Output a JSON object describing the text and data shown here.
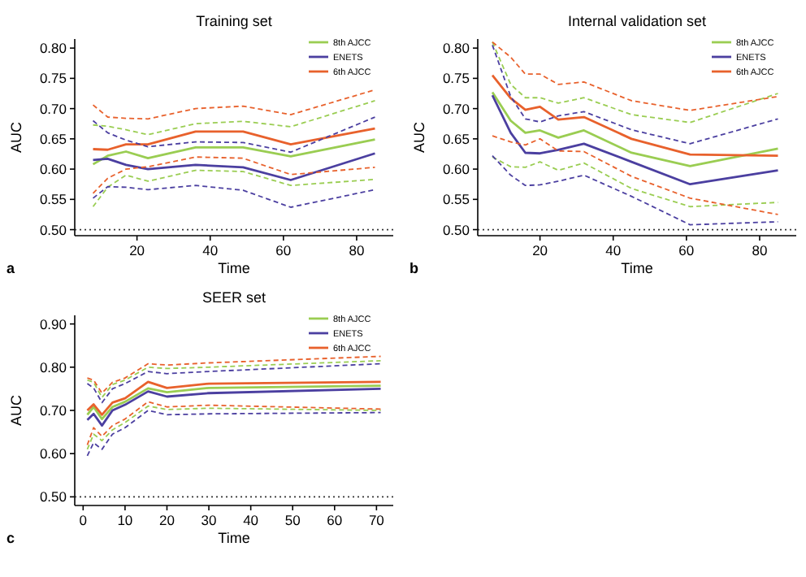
{
  "chart_data": [
    {
      "type": "line",
      "title": "Training set",
      "xlabel": "Time",
      "ylabel": "AUC",
      "annotations": [
        "a"
      ],
      "legend": "top right",
      "line_style": "solid",
      "marker": "none",
      "xlim": [
        3,
        90
      ],
      "xticks": [
        20,
        40,
        60,
        80
      ],
      "ylim": [
        0.49,
        0.815
      ],
      "yticks": [
        {
          "value": 0.5,
          "label": "0.50"
        },
        {
          "value": 0.55,
          "label": "0.55"
        },
        {
          "value": 0.6,
          "label": "0.60"
        },
        {
          "value": 0.65,
          "label": "0.65"
        },
        {
          "value": 0.7,
          "label": "0.70"
        },
        {
          "value": 0.75,
          "label": "0.75"
        },
        {
          "value": 0.8,
          "label": "0.80"
        }
      ],
      "ref_lines": [
        {
          "axis": "y",
          "value": 0.5,
          "color": "#333333",
          "line_style": "dotted"
        }
      ],
      "x": [
        8,
        12,
        17,
        23,
        36,
        49,
        62,
        85
      ],
      "series": [
        {
          "name": "8th AJCC",
          "color": "#9acd52",
          "values": [
            0.608,
            0.622,
            0.629,
            0.618,
            0.636,
            0.636,
            0.621,
            0.649
          ]
        },
        {
          "name": "ENETS",
          "color": "#4b3fa0",
          "values": [
            0.615,
            0.617,
            0.607,
            0.6,
            0.607,
            0.603,
            0.582,
            0.626
          ]
        },
        {
          "name": "6th AJCC",
          "color": "#e8612c",
          "values": [
            0.633,
            0.632,
            0.641,
            0.641,
            0.662,
            0.662,
            0.641,
            0.667
          ]
        },
        {
          "color": "#9acd52",
          "line_style": "dashed",
          "values": [
            0.538,
            0.57,
            0.59,
            0.58,
            0.598,
            0.596,
            0.573,
            0.583
          ]
        },
        {
          "color": "#9acd52",
          "line_style": "dashed",
          "values": [
            0.673,
            0.671,
            0.665,
            0.657,
            0.675,
            0.679,
            0.67,
            0.713
          ]
        },
        {
          "color": "#4b3fa0",
          "line_style": "dashed",
          "values": [
            0.552,
            0.571,
            0.57,
            0.566,
            0.573,
            0.565,
            0.537,
            0.566
          ]
        },
        {
          "color": "#4b3fa0",
          "line_style": "dashed",
          "values": [
            0.68,
            0.66,
            0.648,
            0.637,
            0.645,
            0.644,
            0.628,
            0.686
          ]
        },
        {
          "color": "#e8612c",
          "line_style": "dashed",
          "values": [
            0.56,
            0.585,
            0.6,
            0.604,
            0.62,
            0.618,
            0.591,
            0.603
          ]
        },
        {
          "color": "#e8612c",
          "line_style": "dashed",
          "values": [
            0.706,
            0.686,
            0.684,
            0.683,
            0.7,
            0.704,
            0.69,
            0.731
          ]
        }
      ]
    },
    {
      "type": "line",
      "title": "Internal validation set",
      "xlabel": "Time",
      "ylabel": "AUC",
      "annotations": [
        "b"
      ],
      "legend": "top right",
      "line_style": "solid",
      "marker": "none",
      "xlim": [
        3,
        90
      ],
      "xticks": [
        20,
        40,
        60,
        80
      ],
      "ylim": [
        0.49,
        0.815
      ],
      "yticks": [
        {
          "value": 0.5,
          "label": "0.50"
        },
        {
          "value": 0.55,
          "label": "0.55"
        },
        {
          "value": 0.6,
          "label": "0.60"
        },
        {
          "value": 0.65,
          "label": "0.65"
        },
        {
          "value": 0.7,
          "label": "0.70"
        },
        {
          "value": 0.75,
          "label": "0.75"
        },
        {
          "value": 0.8,
          "label": "0.80"
        }
      ],
      "ref_lines": [
        {
          "axis": "y",
          "value": 0.5,
          "color": "#333333",
          "line_style": "dotted"
        }
      ],
      "x": [
        7,
        12,
        16,
        20,
        25,
        32,
        45,
        61,
        85
      ],
      "series": [
        {
          "name": "8th AJCC",
          "color": "#9acd52",
          "values": [
            0.727,
            0.68,
            0.66,
            0.664,
            0.652,
            0.664,
            0.627,
            0.605,
            0.634
          ]
        },
        {
          "name": "ENETS",
          "color": "#4b3fa0",
          "values": [
            0.722,
            0.66,
            0.627,
            0.626,
            0.632,
            0.642,
            0.612,
            0.575,
            0.598
          ]
        },
        {
          "name": "6th AJCC",
          "color": "#e8612c",
          "values": [
            0.755,
            0.717,
            0.698,
            0.703,
            0.682,
            0.686,
            0.65,
            0.624,
            0.622
          ]
        },
        {
          "color": "#9acd52",
          "line_style": "dashed",
          "values": [
            0.62,
            0.604,
            0.603,
            0.612,
            0.598,
            0.61,
            0.568,
            0.538,
            0.545
          ]
        },
        {
          "color": "#9acd52",
          "line_style": "dashed",
          "values": [
            0.81,
            0.74,
            0.718,
            0.718,
            0.709,
            0.718,
            0.69,
            0.677,
            0.725
          ]
        },
        {
          "color": "#4b3fa0",
          "line_style": "dashed",
          "values": [
            0.622,
            0.59,
            0.573,
            0.574,
            0.58,
            0.59,
            0.555,
            0.508,
            0.513
          ]
        },
        {
          "color": "#4b3fa0",
          "line_style": "dashed",
          "values": [
            0.805,
            0.72,
            0.683,
            0.678,
            0.688,
            0.695,
            0.665,
            0.642,
            0.683
          ]
        },
        {
          "color": "#e8612c",
          "line_style": "dashed",
          "values": [
            0.655,
            0.645,
            0.64,
            0.65,
            0.63,
            0.629,
            0.588,
            0.552,
            0.525
          ]
        },
        {
          "color": "#e8612c",
          "line_style": "dashed",
          "values": [
            0.81,
            0.785,
            0.757,
            0.757,
            0.74,
            0.744,
            0.713,
            0.697,
            0.72
          ]
        }
      ]
    },
    {
      "type": "line",
      "title": "SEER set",
      "xlabel": "Time",
      "ylabel": "AUC",
      "annotations": [
        "c"
      ],
      "legend": "top right",
      "line_style": "solid",
      "marker": "none",
      "xlim": [
        -2,
        74
      ],
      "xticks": [
        0,
        10,
        20,
        30,
        40,
        50,
        60,
        70
      ],
      "ylim": [
        0.48,
        0.92
      ],
      "yticks": [
        {
          "value": 0.5,
          "label": "0.50"
        },
        {
          "value": 0.6,
          "label": "0.60"
        },
        {
          "value": 0.7,
          "label": "0.70"
        },
        {
          "value": 0.8,
          "label": "0.80"
        },
        {
          "value": 0.9,
          "label": "0.90"
        }
      ],
      "ref_lines": [
        {
          "axis": "y",
          "value": 0.5,
          "color": "#333333",
          "line_style": "dotted"
        }
      ],
      "x": [
        1,
        2.5,
        4.5,
        7,
        10,
        15.5,
        20,
        30,
        71
      ],
      "series": [
        {
          "name": "8th AJCC",
          "color": "#9acd52",
          "values": [
            0.69,
            0.708,
            0.68,
            0.708,
            0.72,
            0.751,
            0.742,
            0.752,
            0.757
          ]
        },
        {
          "name": "ENETS",
          "color": "#4b3fa0",
          "values": [
            0.678,
            0.692,
            0.665,
            0.7,
            0.713,
            0.744,
            0.732,
            0.74,
            0.75
          ]
        },
        {
          "name": "6th AJCC",
          "color": "#e8612c",
          "values": [
            0.7,
            0.714,
            0.69,
            0.718,
            0.728,
            0.766,
            0.752,
            0.762,
            0.766
          ]
        },
        {
          "color": "#9acd52",
          "line_style": "dashed",
          "values": [
            0.61,
            0.645,
            0.63,
            0.655,
            0.672,
            0.71,
            0.702,
            0.705,
            0.7
          ]
        },
        {
          "color": "#9acd52",
          "line_style": "dashed",
          "values": [
            0.77,
            0.765,
            0.73,
            0.76,
            0.77,
            0.8,
            0.797,
            0.8,
            0.815
          ]
        },
        {
          "color": "#4b3fa0",
          "line_style": "dashed",
          "values": [
            0.595,
            0.625,
            0.61,
            0.645,
            0.66,
            0.7,
            0.69,
            0.692,
            0.695
          ]
        },
        {
          "color": "#4b3fa0",
          "line_style": "dashed",
          "values": [
            0.762,
            0.752,
            0.718,
            0.75,
            0.762,
            0.79,
            0.785,
            0.79,
            0.808
          ]
        },
        {
          "color": "#e8612c",
          "line_style": "dashed",
          "values": [
            0.62,
            0.66,
            0.64,
            0.665,
            0.68,
            0.72,
            0.708,
            0.712,
            0.703
          ]
        },
        {
          "color": "#e8612c",
          "line_style": "dashed",
          "values": [
            0.775,
            0.77,
            0.74,
            0.765,
            0.775,
            0.808,
            0.805,
            0.81,
            0.825
          ]
        }
      ]
    }
  ]
}
